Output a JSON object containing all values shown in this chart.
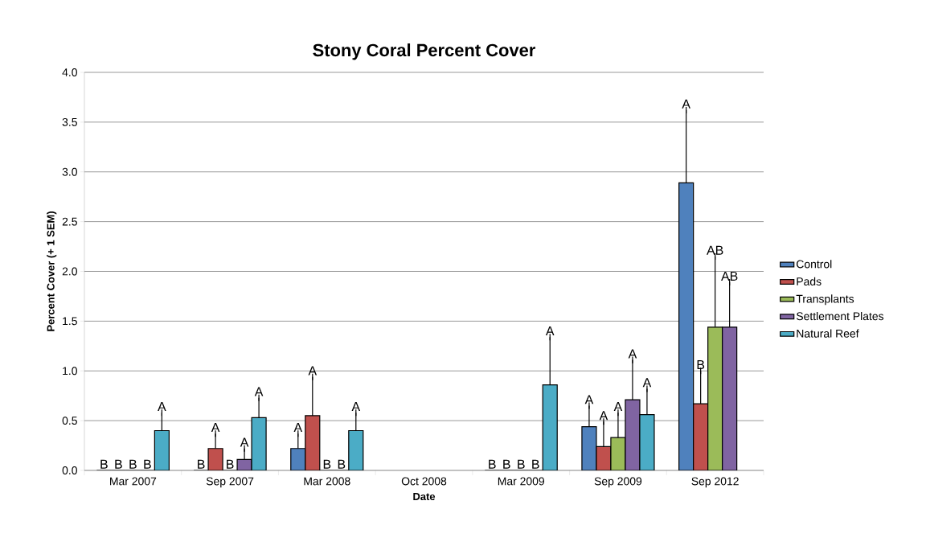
{
  "chart_data": {
    "type": "bar",
    "title": "Stony Coral Percent Cover",
    "xlabel": "Date",
    "ylabel": "Percent Cover (+ 1 SEM)",
    "categories": [
      "Mar 2007",
      "Sep 2007",
      "Mar 2008",
      "Oct 2008",
      "Mar 2009",
      "Sep 2009",
      "Sep 2012"
    ],
    "series": [
      {
        "name": "Control",
        "color": "#4f81bd",
        "values": [
          0,
          0,
          0.22,
          null,
          0,
          0.44,
          2.89
        ],
        "errors": [
          null,
          null,
          [
            0.22,
            0.37
          ],
          null,
          null,
          [
            0.44,
            0.65
          ],
          [
            2.89,
            3.62
          ]
        ]
      },
      {
        "name": "Pads",
        "color": "#c0504d",
        "values": [
          0,
          0.22,
          0.55,
          null,
          0,
          0.24,
          0.67
        ],
        "errors": [
          null,
          [
            0.22,
            0.37
          ],
          [
            0.55,
            0.94
          ],
          null,
          null,
          [
            0.24,
            0.49
          ],
          [
            0.67,
            1.0
          ]
        ]
      },
      {
        "name": "Transplants",
        "color": "#9bbb59",
        "values": [
          0,
          0,
          0,
          null,
          0,
          0.33,
          1.44
        ],
        "errors": [
          null,
          null,
          null,
          null,
          null,
          [
            0.33,
            0.58
          ],
          [
            1.44,
            2.15
          ]
        ]
      },
      {
        "name": "Settlement Plates",
        "color": "#8064a2",
        "values": [
          0,
          0.11,
          0,
          null,
          0,
          0.71,
          1.44
        ],
        "errors": [
          null,
          [
            0.11,
            0.22
          ],
          null,
          null,
          null,
          [
            0.71,
            1.11
          ],
          [
            1.44,
            1.89
          ]
        ]
      },
      {
        "name": "Natural Reef",
        "color": "#4bacc6",
        "values": [
          0.4,
          0.53,
          0.4,
          null,
          0.86,
          0.56,
          null
        ],
        "errors": [
          [
            0.4,
            0.58
          ],
          [
            0.53,
            0.73
          ],
          [
            0.4,
            0.58
          ],
          null,
          [
            0.86,
            1.34
          ],
          [
            0.56,
            0.82
          ],
          null
        ]
      }
    ],
    "annotations": [
      "B",
      "B",
      "B",
      "B",
      "A",
      "B",
      "A",
      "B",
      "A",
      "A",
      "A",
      "A",
      "B",
      "B",
      "A",
      "B",
      "B",
      "B",
      "B",
      "A",
      "A",
      "A",
      "A",
      "A",
      "A",
      "A",
      "B",
      "AB",
      "AB"
    ],
    "ylim": [
      0,
      4
    ],
    "yticks": [
      {
        "value": 0,
        "label": "0.0"
      },
      {
        "value": 0.5,
        "label": "0.5"
      },
      {
        "value": 1,
        "label": "1.0"
      },
      {
        "value": 1.5,
        "label": "1.5"
      },
      {
        "value": 2,
        "label": "2.0"
      },
      {
        "value": 2.5,
        "label": "2.5"
      },
      {
        "value": 3,
        "label": "3.0"
      },
      {
        "value": 3.5,
        "label": "3.5"
      },
      {
        "value": 4,
        "label": "4.0"
      }
    ],
    "grid": "y",
    "legend": "right"
  }
}
